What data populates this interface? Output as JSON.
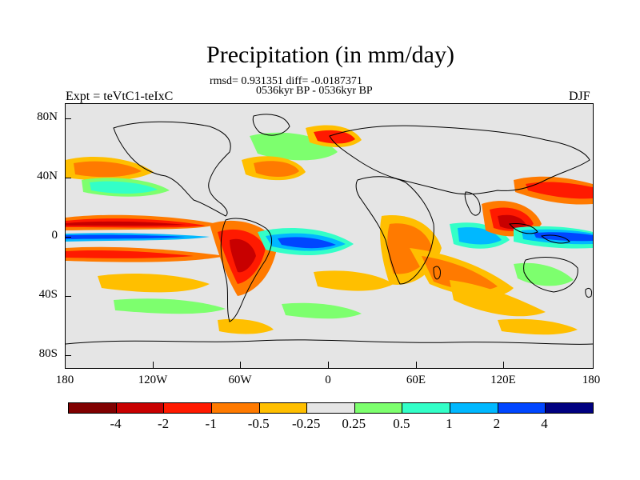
{
  "title": "Precipitation (in mm/day)",
  "stats": "rmsd= 0.931351 diff= -0.0187371",
  "period": "0536kyr BP - 0536kyr BP",
  "expt": "Expt = teVtC1-teIxC",
  "season": "DJF",
  "y_axis": {
    "ticks": [
      {
        "label": "80N",
        "lat": 80
      },
      {
        "label": "40N",
        "lat": 40
      },
      {
        "label": "0",
        "lat": 0
      },
      {
        "label": "40S",
        "lat": -40
      },
      {
        "label": "80S",
        "lat": -80
      }
    ]
  },
  "x_axis": {
    "ticks": [
      {
        "label": "180",
        "lon": -180
      },
      {
        "label": "120W",
        "lon": -120
      },
      {
        "label": "60W",
        "lon": -60
      },
      {
        "label": "0",
        "lon": 0
      },
      {
        "label": "60E",
        "lon": 60
      },
      {
        "label": "120E",
        "lon": 120
      },
      {
        "label": "180",
        "lon": 180
      }
    ]
  },
  "colorbar": {
    "colors": [
      "#800000",
      "#c80000",
      "#ff1a00",
      "#ff7a00",
      "#ffbf00",
      "#e5e5e5",
      "#7dff6e",
      "#33ffc8",
      "#00b8ff",
      "#0046ff",
      "#000080"
    ],
    "labels": [
      "-4",
      "-2",
      "-1",
      "-0.5",
      "-0.25",
      "0.25",
      "0.5",
      "1",
      "2",
      "4"
    ]
  },
  "colors": {
    "background": "#e5e5e5",
    "coastline": "#000000"
  }
}
